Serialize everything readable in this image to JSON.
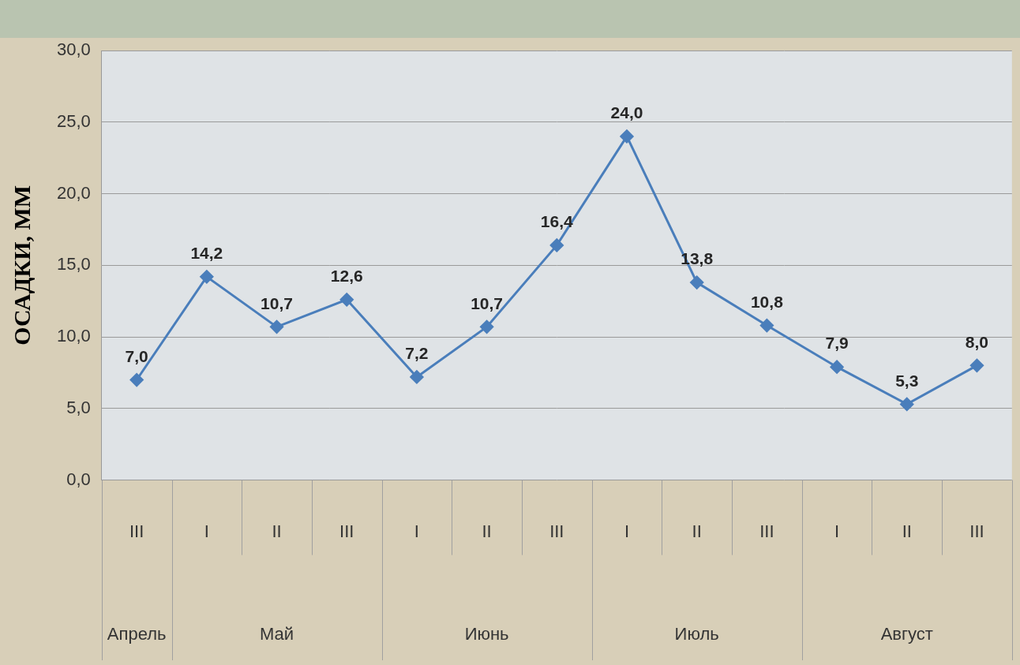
{
  "chart_data": {
    "type": "line",
    "y_label": "ОСАДКИ, ММ",
    "categories": [
      "III",
      "I",
      "II",
      "III",
      "I",
      "II",
      "III",
      "I",
      "II",
      "III",
      "I",
      "II",
      "III"
    ],
    "groups": [
      {
        "label": "Апрель",
        "span": 1
      },
      {
        "label": "Май",
        "span": 3
      },
      {
        "label": "Июнь",
        "span": 3
      },
      {
        "label": "Июль",
        "span": 3
      },
      {
        "label": "Август",
        "span": 3
      }
    ],
    "values": [
      7.0,
      14.2,
      10.7,
      12.6,
      7.2,
      10.7,
      16.4,
      24.0,
      13.8,
      10.8,
      7.9,
      5.3,
      8.0
    ],
    "value_labels": [
      "7,0",
      "14,2",
      "10,7",
      "12,6",
      "7,2",
      "10,7",
      "16,4",
      "24,0",
      "13,8",
      "10,8",
      "7,9",
      "5,3",
      "8,0"
    ],
    "color": "#4a7ebb",
    "marker": "diamond",
    "data_labels": true,
    "grid": true,
    "ylim": [
      0,
      30
    ],
    "yticks": [
      {
        "value": 0,
        "label": "0,0"
      },
      {
        "value": 5,
        "label": "5,0"
      },
      {
        "value": 10,
        "label": "10,0"
      },
      {
        "value": 15,
        "label": "15,0"
      },
      {
        "value": 20,
        "label": "20,0"
      },
      {
        "value": 25,
        "label": "25,0"
      },
      {
        "value": 30,
        "label": "30,0"
      }
    ]
  }
}
